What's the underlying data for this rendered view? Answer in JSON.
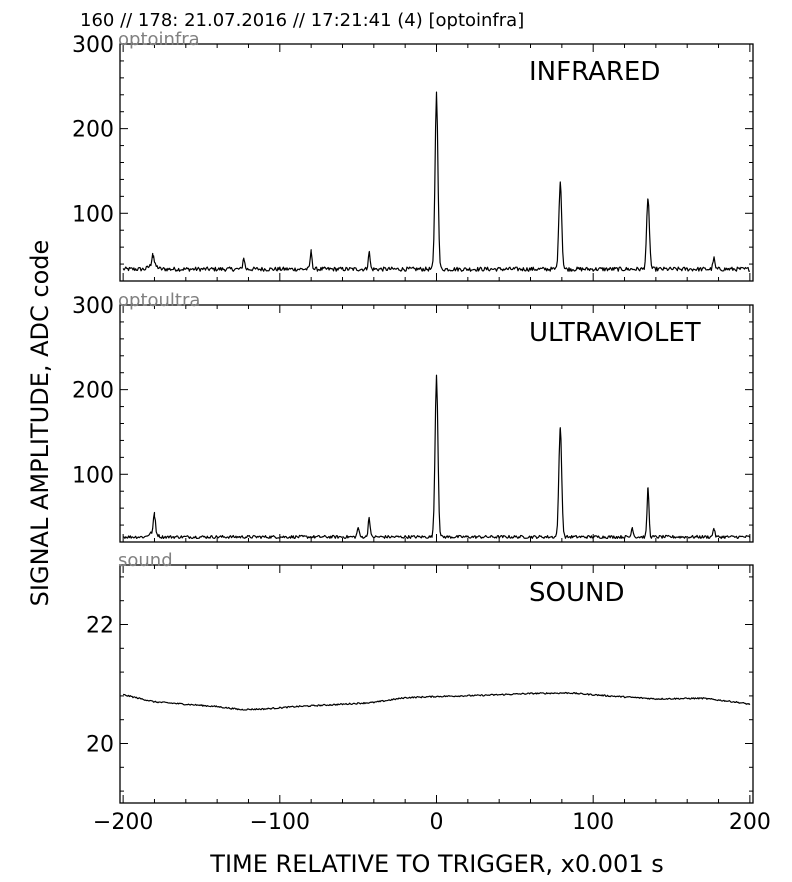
{
  "header": {
    "text": "160 // 178:   21.07.2016 // 17:21:41 (4)  [optoinfra]"
  },
  "chart_data": [
    {
      "type": "line",
      "channel": "optoinfra",
      "name": "INFRARED",
      "xlim": [
        -202,
        202
      ],
      "ylim": [
        20,
        300
      ],
      "yticks": [
        100,
        200,
        300
      ],
      "baseline": 34,
      "noise": 2.5,
      "peaks": [
        {
          "x": 0,
          "y": 242
        },
        {
          "x": 79,
          "y": 137
        },
        {
          "x": 135,
          "y": 116
        },
        {
          "x": -80,
          "y": 55
        },
        {
          "x": -43,
          "y": 54
        },
        {
          "x": -181,
          "y": 48
        },
        {
          "x": -123,
          "y": 47
        },
        {
          "x": 177,
          "y": 47
        }
      ]
    },
    {
      "type": "line",
      "channel": "optoultra",
      "name": "ULTRAVIOLET",
      "xlim": [
        -202,
        202
      ],
      "ylim": [
        20,
        300
      ],
      "yticks": [
        100,
        200,
        300
      ],
      "baseline": 26,
      "noise": 1.8,
      "peaks": [
        {
          "x": 0,
          "y": 217
        },
        {
          "x": 79,
          "y": 155
        },
        {
          "x": 135,
          "y": 84
        },
        {
          "x": -180,
          "y": 50
        },
        {
          "x": -43,
          "y": 49
        },
        {
          "x": -50,
          "y": 37
        },
        {
          "x": 125,
          "y": 37
        },
        {
          "x": 177,
          "y": 36
        }
      ]
    },
    {
      "type": "line",
      "channel": "sound",
      "name": "SOUND",
      "xlim": [
        -202,
        202
      ],
      "ylim": [
        19,
        23
      ],
      "yticks": [
        20,
        22
      ],
      "noise": 0.012,
      "trend": [
        {
          "x": -200,
          "y": 20.82
        },
        {
          "x": -180,
          "y": 20.7
        },
        {
          "x": -160,
          "y": 20.66
        },
        {
          "x": -140,
          "y": 20.62
        },
        {
          "x": -125,
          "y": 20.57
        },
        {
          "x": -110,
          "y": 20.58
        },
        {
          "x": -90,
          "y": 20.62
        },
        {
          "x": -60,
          "y": 20.66
        },
        {
          "x": -40,
          "y": 20.69
        },
        {
          "x": -20,
          "y": 20.77
        },
        {
          "x": 0,
          "y": 20.79
        },
        {
          "x": 30,
          "y": 20.81
        },
        {
          "x": 60,
          "y": 20.84
        },
        {
          "x": 85,
          "y": 20.85
        },
        {
          "x": 110,
          "y": 20.8
        },
        {
          "x": 140,
          "y": 20.75
        },
        {
          "x": 170,
          "y": 20.76
        },
        {
          "x": 190,
          "y": 20.7
        },
        {
          "x": 200,
          "y": 20.66
        }
      ]
    }
  ],
  "x_axis": {
    "label": "TIME RELATIVE TO TRIGGER,   x0.001 s",
    "ticks": [
      -200,
      -100,
      0,
      100,
      200
    ]
  },
  "y_axis": {
    "label": "SIGNAL AMPLITUDE,  ADC code"
  }
}
